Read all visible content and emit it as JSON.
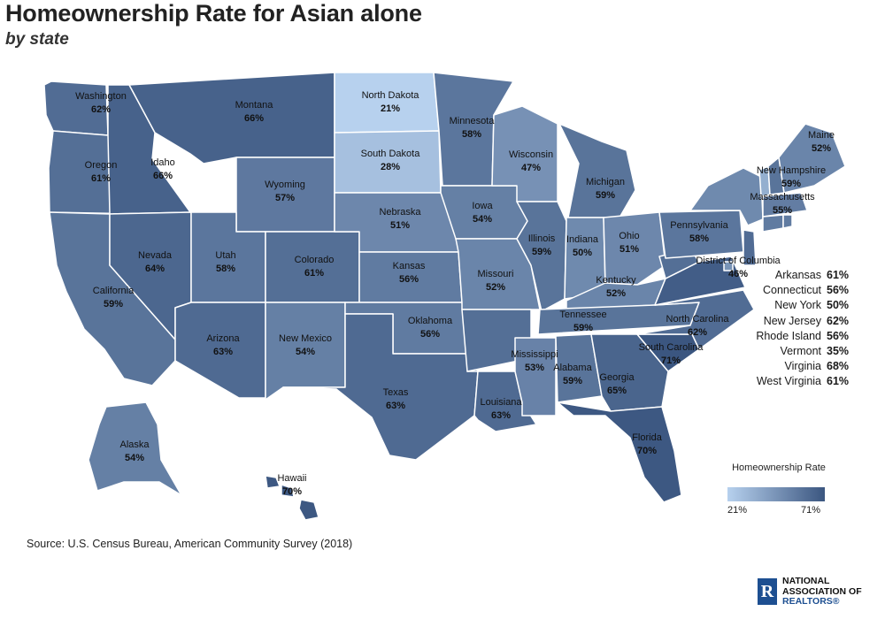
{
  "title": "Homeownership Rate for Asian alone",
  "subtitle": "by state",
  "colors": {
    "low": "#b7d1ee",
    "high": "#3b5680"
  },
  "states": [
    {
      "id": "WA",
      "name": "Washington",
      "value": 62,
      "label": "62%"
    },
    {
      "id": "OR",
      "name": "Oregon",
      "value": 61,
      "label": "61%"
    },
    {
      "id": "CA",
      "name": "California",
      "value": 59,
      "label": "59%"
    },
    {
      "id": "ID",
      "name": "Idaho",
      "value": 66,
      "label": "66%"
    },
    {
      "id": "NV",
      "name": "Nevada",
      "value": 64,
      "label": "64%"
    },
    {
      "id": "MT",
      "name": "Montana",
      "value": 66,
      "label": "66%"
    },
    {
      "id": "WY",
      "name": "Wyoming",
      "value": 57,
      "label": "57%"
    },
    {
      "id": "UT",
      "name": "Utah",
      "value": 58,
      "label": "58%"
    },
    {
      "id": "AZ",
      "name": "Arizona",
      "value": 63,
      "label": "63%"
    },
    {
      "id": "CO",
      "name": "Colorado",
      "value": 61,
      "label": "61%"
    },
    {
      "id": "NM",
      "name": "New Mexico",
      "value": 54,
      "label": "54%"
    },
    {
      "id": "ND",
      "name": "North Dakota",
      "value": 21,
      "label": "21%"
    },
    {
      "id": "SD",
      "name": "South Dakota",
      "value": 28,
      "label": "28%"
    },
    {
      "id": "NE",
      "name": "Nebraska",
      "value": 51,
      "label": "51%"
    },
    {
      "id": "KS",
      "name": "Kansas",
      "value": 56,
      "label": "56%"
    },
    {
      "id": "OK",
      "name": "Oklahoma",
      "value": 56,
      "label": "56%"
    },
    {
      "id": "TX",
      "name": "Texas",
      "value": 63,
      "label": "63%"
    },
    {
      "id": "MN",
      "name": "Minnesota",
      "value": 58,
      "label": "58%"
    },
    {
      "id": "IA",
      "name": "Iowa",
      "value": 54,
      "label": "54%"
    },
    {
      "id": "MO",
      "name": "Missouri",
      "value": 52,
      "label": "52%"
    },
    {
      "id": "AR",
      "name": "Arkansas",
      "value": 61,
      "label": "61%"
    },
    {
      "id": "LA",
      "name": "Louisiana",
      "value": 63,
      "label": "63%"
    },
    {
      "id": "WI",
      "name": "Wisconsin",
      "value": 47,
      "label": "47%"
    },
    {
      "id": "IL",
      "name": "Illinois",
      "value": 59,
      "label": "59%"
    },
    {
      "id": "MI",
      "name": "Michigan",
      "value": 59,
      "label": "59%"
    },
    {
      "id": "IN",
      "name": "Indiana",
      "value": 50,
      "label": "50%"
    },
    {
      "id": "OH",
      "name": "Ohio",
      "value": 51,
      "label": "51%"
    },
    {
      "id": "KY",
      "name": "Kentucky",
      "value": 52,
      "label": "52%"
    },
    {
      "id": "TN",
      "name": "Tennessee",
      "value": 59,
      "label": "59%"
    },
    {
      "id": "MS",
      "name": "Mississippi",
      "value": 53,
      "label": "53%"
    },
    {
      "id": "AL",
      "name": "Alabama",
      "value": 59,
      "label": "59%"
    },
    {
      "id": "GA",
      "name": "Georgia",
      "value": 65,
      "label": "65%"
    },
    {
      "id": "FL",
      "name": "Florida",
      "value": 70,
      "label": "70%"
    },
    {
      "id": "SC",
      "name": "South Carolina",
      "value": 71,
      "label": "71%"
    },
    {
      "id": "NC",
      "name": "North Carolina",
      "value": 62,
      "label": "62%"
    },
    {
      "id": "VA",
      "name": "Virginia",
      "value": 68,
      "label": "68%"
    },
    {
      "id": "WV",
      "name": "West Virginia",
      "value": 61,
      "label": "61%"
    },
    {
      "id": "PA",
      "name": "Pennsylvania",
      "value": 58,
      "label": "58%"
    },
    {
      "id": "NY",
      "name": "New York",
      "value": 50,
      "label": "50%"
    },
    {
      "id": "VT",
      "name": "Vermont",
      "value": 35,
      "label": "35%"
    },
    {
      "id": "NH",
      "name": "New Hampshire",
      "value": 59,
      "label": "59%"
    },
    {
      "id": "ME",
      "name": "Maine",
      "value": 52,
      "label": "52%"
    },
    {
      "id": "MA",
      "name": "Massachusetts",
      "value": 55,
      "label": "55%"
    },
    {
      "id": "CT",
      "name": "Connecticut",
      "value": 56,
      "label": "56%"
    },
    {
      "id": "RI",
      "name": "Rhode Island",
      "value": 56,
      "label": "56%"
    },
    {
      "id": "NJ",
      "name": "New Jersey",
      "value": 62,
      "label": "62%"
    },
    {
      "id": "DC",
      "name": "District of Columbia",
      "value": 46,
      "label": "46%"
    },
    {
      "id": "AK",
      "name": "Alaska",
      "value": 54,
      "label": "54%"
    },
    {
      "id": "HI",
      "name": "Hawaii",
      "value": 70,
      "label": "70%"
    }
  ],
  "side_list": [
    {
      "name": "Arkansas",
      "label": "61%"
    },
    {
      "name": "Connecticut",
      "label": "56%"
    },
    {
      "name": "New York",
      "label": "50%"
    },
    {
      "name": "New Jersey",
      "label": "62%"
    },
    {
      "name": "Rhode Island",
      "label": "56%"
    },
    {
      "name": "Vermont",
      "label": "35%"
    },
    {
      "name": "Virginia",
      "label": "68%"
    },
    {
      "name": "West Virginia",
      "label": "61%"
    }
  ],
  "legend": {
    "title": "Homeownership Rate",
    "min": 21,
    "max": 71,
    "min_label": "21%",
    "max_label": "71%"
  },
  "source": "Source: U.S. Census Bureau, American Community Survey (2018)",
  "logo": {
    "line1": "NATIONAL",
    "line2": "ASSOCIATION OF",
    "line3": "REALTORS",
    "reg": "®",
    "mark": "R"
  }
}
